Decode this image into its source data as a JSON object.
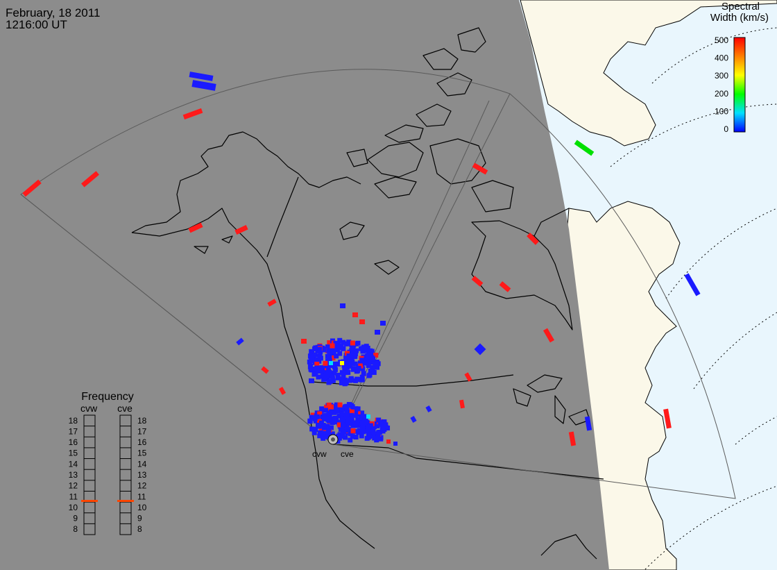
{
  "header": {
    "date": "February, 18 2011",
    "time": "1216:00 UT"
  },
  "colorbar": {
    "title_line1": "Spectral",
    "title_line2": "Width (km/s)",
    "ticks": [
      "500",
      "400",
      "300",
      "200",
      "100",
      "0"
    ],
    "stops": [
      "#0000ff",
      "#00e0ff",
      "#00ff00",
      "#ffff00",
      "#ff8000",
      "#ff0000"
    ]
  },
  "frequency": {
    "title": "Frequency",
    "left_radar": "cvw",
    "right_radar": "cve",
    "scale": [
      "18",
      "17",
      "16",
      "15",
      "14",
      "13",
      "12",
      "11",
      "10",
      "9",
      "8"
    ],
    "cvw_mhz": 10.6,
    "cve_mhz": 10.6,
    "marker_color": "#ff4500"
  },
  "radars": {
    "west": "cvw",
    "east": "cve"
  },
  "colors": {
    "night": "#8c8c8c",
    "day_land": "#fbf8e9",
    "day_ocean": "#e9f6fd",
    "coast": "#000000",
    "fov_line": "#5a5a5a",
    "low_width": "#1a1aff",
    "high_width": "#ff1a1a"
  }
}
